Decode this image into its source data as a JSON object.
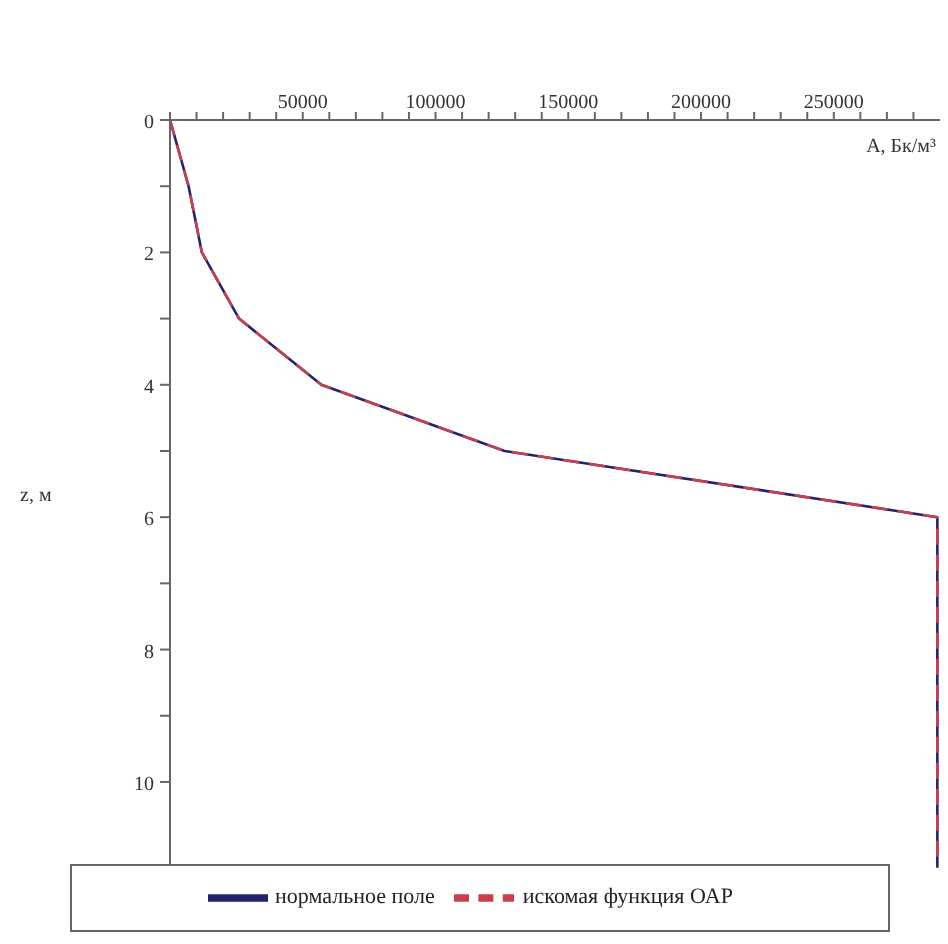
{
  "chart_data": {
    "type": "line",
    "xlabel": "A, Бк/м³",
    "ylabel": "z, м",
    "xlim": [
      0,
      290000
    ],
    "ylim": [
      11.3,
      0
    ],
    "xticks": [
      {
        "value": 0,
        "label": null
      },
      {
        "value": 10000,
        "label": null
      },
      {
        "value": 20000,
        "label": null
      },
      {
        "value": 30000,
        "label": null
      },
      {
        "value": 40000,
        "label": null
      },
      50000,
      {
        "value": 60000,
        "label": null
      },
      {
        "value": 70000,
        "label": null
      },
      {
        "value": 80000,
        "label": null
      },
      {
        "value": 90000,
        "label": null
      },
      100000,
      {
        "value": 110000,
        "label": null
      },
      {
        "value": 120000,
        "label": null
      },
      {
        "value": 130000,
        "label": null
      },
      {
        "value": 140000,
        "label": null
      },
      150000,
      {
        "value": 160000,
        "label": null
      },
      {
        "value": 170000,
        "label": null
      },
      {
        "value": 180000,
        "label": null
      },
      {
        "value": 190000,
        "label": null
      },
      200000,
      {
        "value": 210000,
        "label": null
      },
      {
        "value": 220000,
        "label": null
      },
      {
        "value": 230000,
        "label": null
      },
      {
        "value": 240000,
        "label": null
      },
      250000,
      {
        "value": 260000,
        "label": null
      },
      {
        "value": 270000,
        "label": null
      },
      {
        "value": 280000,
        "label": null
      }
    ],
    "yticks": [
      0,
      {
        "value": 1,
        "label": null
      },
      2,
      {
        "value": 3,
        "label": null
      },
      4,
      {
        "value": 5,
        "label": null
      },
      6,
      {
        "value": 7,
        "label": null
      },
      8,
      {
        "value": 9,
        "label": null
      },
      10
    ],
    "grid": false,
    "legend": "bottom",
    "marker": "none",
    "series": [
      {
        "name": "нормальное поле",
        "color": "#22226e",
        "line_style": "solid",
        "x": [
          0,
          7000,
          12000,
          26000,
          57000,
          126000,
          289000,
          289000
        ],
        "values": [
          0,
          1,
          2,
          3,
          4,
          5,
          6,
          11.3
        ]
      },
      {
        "name": "искомая функция ОАР",
        "color": "#c8404e",
        "line_style": "dashed",
        "x": [
          0,
          7000,
          12000,
          26000,
          57000,
          126000,
          289000,
          289000
        ],
        "values": [
          0,
          1,
          2,
          3,
          4,
          5,
          6,
          11.3
        ]
      }
    ]
  }
}
